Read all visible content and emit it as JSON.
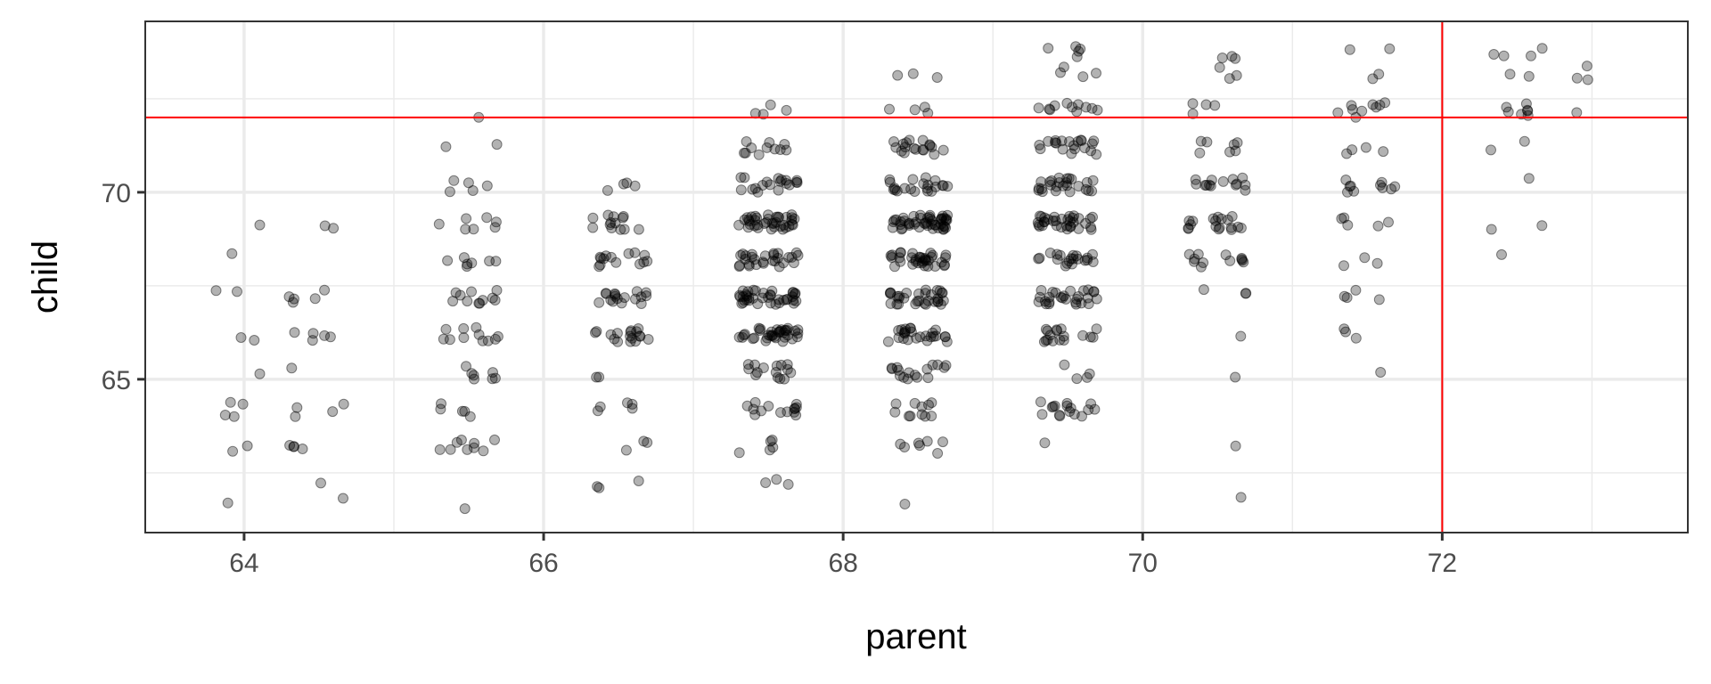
{
  "chart_data": {
    "type": "scatter",
    "title": "",
    "xlabel": "parent",
    "ylabel": "child",
    "xlim": [
      63.34,
      73.64
    ],
    "ylim": [
      60.9,
      74.57
    ],
    "x_ticks": [
      64,
      66,
      68,
      70,
      72
    ],
    "x_tick_labels": [
      "64",
      "66",
      "68",
      "70",
      "72"
    ],
    "y_ticks": [
      65,
      70
    ],
    "y_tick_labels": [
      "65",
      "70"
    ],
    "grid": true,
    "jitter": {
      "x": 0.2,
      "y": 0.2
    },
    "point_color": "#000000",
    "point_alpha": 0.3,
    "reference_lines": [
      {
        "orientation": "vertical",
        "value": 72,
        "color": "#ff0000"
      },
      {
        "orientation": "horizontal",
        "value": 72,
        "color": "#ff0000"
      }
    ],
    "parent_values": [
      64.0,
      64.5,
      65.5,
      66.5,
      67.5,
      68.5,
      69.5,
      70.5,
      71.5,
      72.5,
      73.0
    ],
    "child_values": [
      73.7,
      73.2,
      72.2,
      71.2,
      70.2,
      69.2,
      68.2,
      67.2,
      66.2,
      65.2,
      64.2,
      63.2,
      62.2,
      61.7
    ],
    "counts": [
      [
        0,
        0,
        0,
        0,
        0,
        0,
        5,
        3,
        2,
        4,
        0
      ],
      [
        0,
        0,
        0,
        0,
        0,
        3,
        4,
        3,
        2,
        2,
        3
      ],
      [
        0,
        0,
        1,
        0,
        4,
        4,
        11,
        4,
        9,
        7,
        1
      ],
      [
        0,
        0,
        2,
        0,
        11,
        18,
        20,
        7,
        4,
        2,
        0
      ],
      [
        0,
        0,
        5,
        4,
        19,
        21,
        25,
        14,
        10,
        1,
        0
      ],
      [
        1,
        2,
        7,
        13,
        38,
        48,
        33,
        18,
        5,
        2,
        0
      ],
      [
        1,
        0,
        7,
        14,
        28,
        34,
        20,
        12,
        3,
        1,
        0
      ],
      [
        2,
        5,
        11,
        17,
        38,
        31,
        27,
        3,
        4,
        0,
        0
      ],
      [
        2,
        5,
        11,
        17,
        36,
        25,
        17,
        1,
        3,
        0,
        0
      ],
      [
        1,
        1,
        7,
        2,
        15,
        16,
        4,
        1,
        1,
        0,
        0
      ],
      [
        4,
        4,
        5,
        5,
        14,
        11,
        16,
        0,
        0,
        0,
        0
      ],
      [
        2,
        4,
        9,
        3,
        5,
        7,
        1,
        1,
        0,
        0,
        0
      ],
      [
        0,
        1,
        0,
        3,
        3,
        0,
        0,
        0,
        0,
        0,
        0
      ],
      [
        1,
        1,
        1,
        0,
        0,
        1,
        0,
        1,
        0,
        0,
        0
      ]
    ]
  }
}
